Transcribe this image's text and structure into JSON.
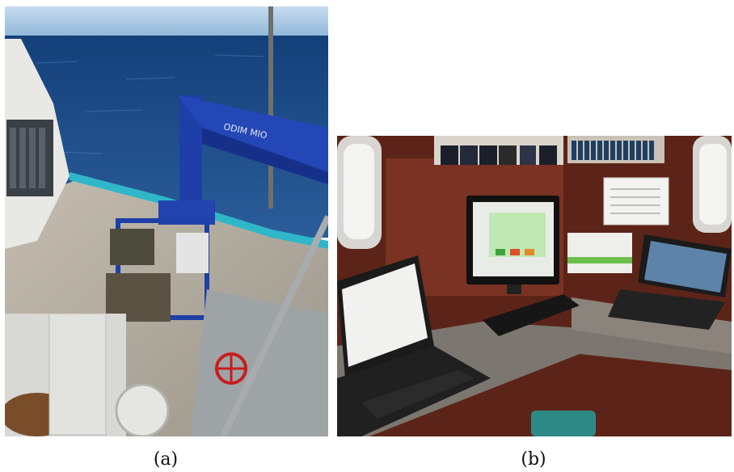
{
  "figure": {
    "panels": [
      {
        "label": "(a)"
      },
      {
        "label": "(b)"
      }
    ]
  },
  "photo_a": {
    "crane_text": "ODIM MIO"
  },
  "colors": {
    "sea": "#1f4f8f",
    "sky": "#9cc4e6",
    "crane_blue": "#1f3fa8",
    "deck": "#b9b2a4",
    "wood_panel": "#6b2a1e",
    "screen_green": "#bfe8b4"
  }
}
